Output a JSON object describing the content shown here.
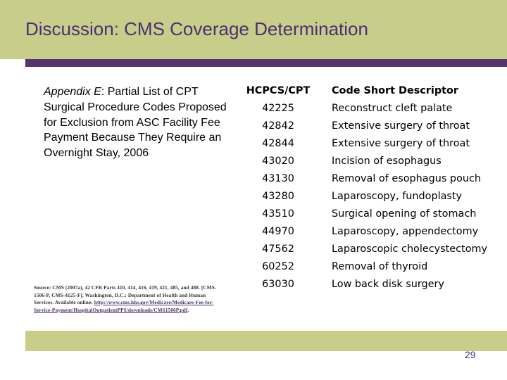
{
  "slide": {
    "title": "Discussion: CMS Coverage Determination",
    "page_number": "29"
  },
  "caption": {
    "appendix": "Appendix E",
    "rest": ": Partial List of CPT Surgical Procedure Codes Proposed for Exclusion from ASC Facility Fee Payment Because They Require an Overnight Stay, 2006"
  },
  "source": {
    "text": "Source: CMS (2007a), 42 CFR Parts 410, 414, 416, 419, 421, 485, and 488. [CMS-1506-P, CMS-4125-F]. Washington, D.C.: Department of Health and Human Services. Available online:",
    "link": "http://www.cms.hhs.gov/Medicare/Medicare-Fee-for-Service-Payment/HospitalOutpatientPPS/downloads/CMS1506P.pdf",
    "trail": "."
  },
  "table": {
    "headers": [
      "HCPCS/CPT",
      "Code Short Descriptor"
    ],
    "rows": [
      {
        "code": "42225",
        "desc": "Reconstruct cleft palate"
      },
      {
        "code": "42842",
        "desc": "Extensive surgery of throat"
      },
      {
        "code": "42844",
        "desc": "Extensive surgery of throat"
      },
      {
        "code": "43020",
        "desc": "Incision of esophagus"
      },
      {
        "code": "43130",
        "desc": "Removal of esophagus pouch"
      },
      {
        "code": "43280",
        "desc": "Laparoscopy, fundoplasty"
      },
      {
        "code": "43510",
        "desc": "Surgical opening of stomach"
      },
      {
        "code": "44970",
        "desc": "Laparoscopy, appendectomy"
      },
      {
        "code": "47562",
        "desc": "Laparoscopic cholecystectomy"
      },
      {
        "code": "60252",
        "desc": "Removal of thyroid"
      },
      {
        "code": "63030",
        "desc": "Low back disk surgery"
      }
    ]
  }
}
